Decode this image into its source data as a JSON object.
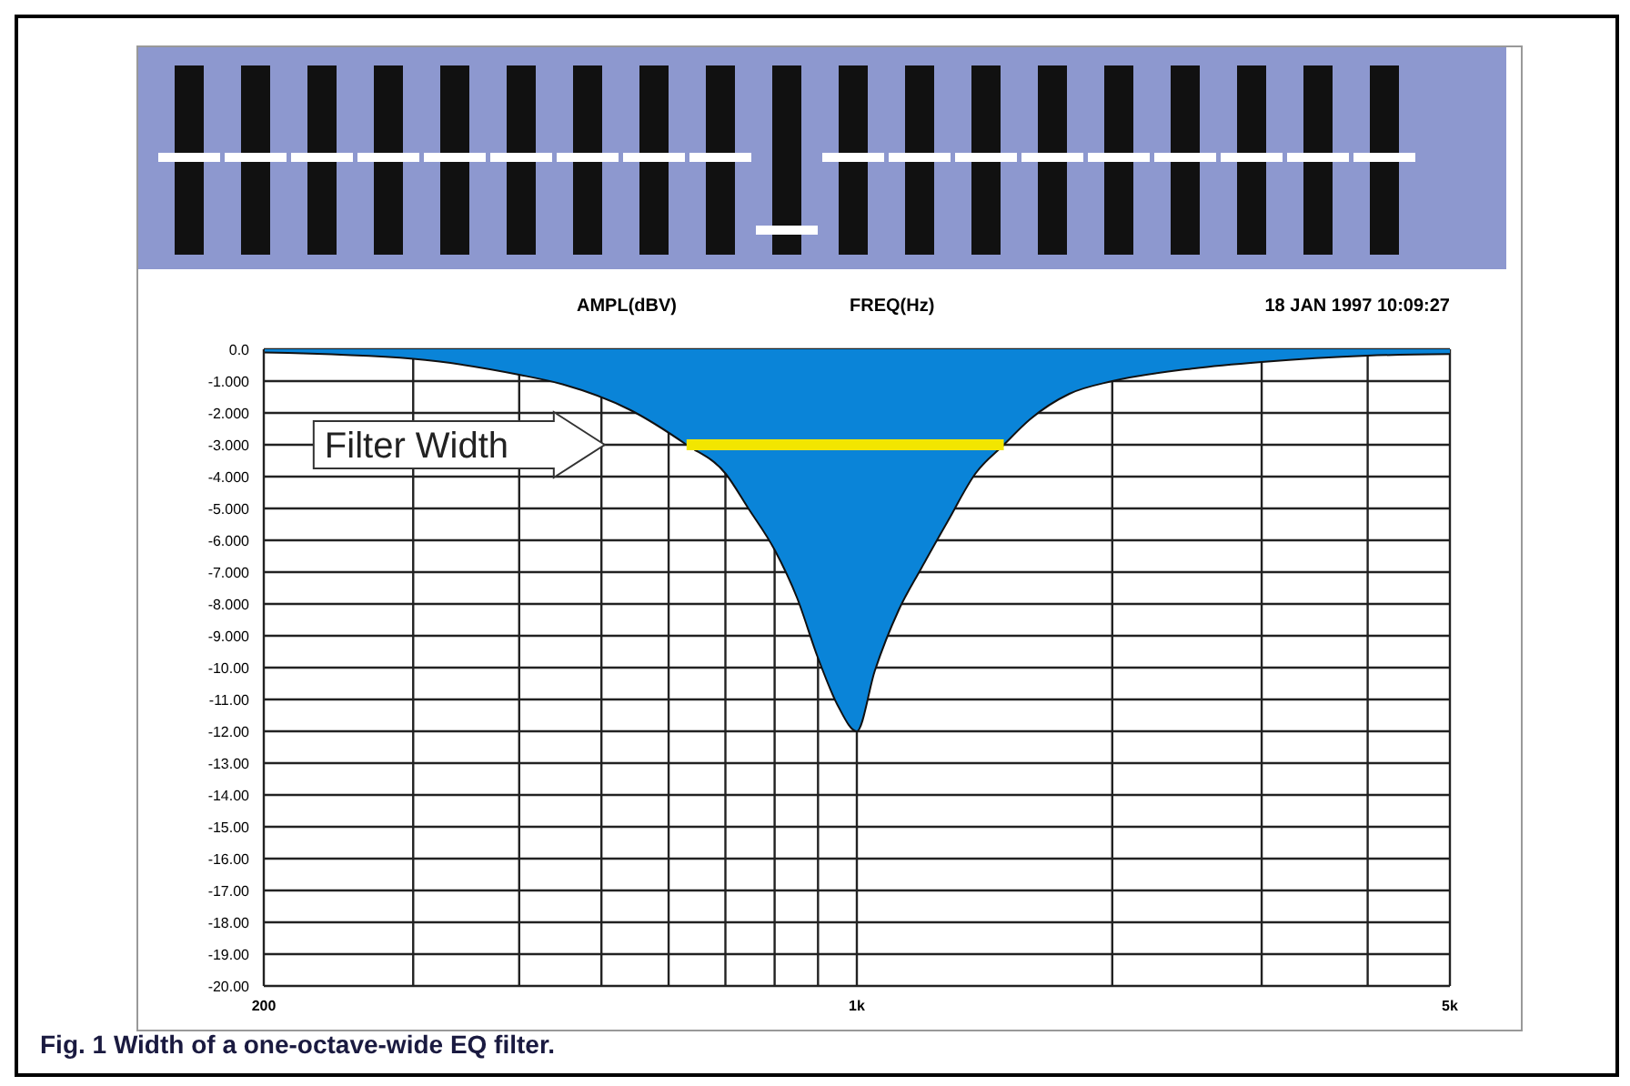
{
  "chart_data": {
    "type": "area",
    "title": "Fig. 1 Width of a one-octave-wide EQ filter.",
    "xlabel": "FREQ(Hz)",
    "ylabel": "AMPL(dBV)",
    "annotations": [
      "18 JAN 1997 10:09:27",
      "Filter Width"
    ],
    "log": "x",
    "grid": true,
    "marker": "none",
    "xlim": [
      200,
      5000
    ],
    "xticks": [
      {
        "value": 200,
        "label": "200"
      },
      {
        "value": 300,
        "label": null
      },
      {
        "value": 400,
        "label": null
      },
      {
        "value": 500,
        "label": null
      },
      {
        "value": 600,
        "label": null
      },
      {
        "value": 700,
        "label": null
      },
      {
        "value": 800,
        "label": null
      },
      {
        "value": 900,
        "label": null
      },
      {
        "value": 1000,
        "label": "1k"
      },
      {
        "value": 2000,
        "label": null
      },
      {
        "value": 3000,
        "label": null
      },
      {
        "value": 4000,
        "label": null
      },
      {
        "value": 5000,
        "label": "5k"
      }
    ],
    "ylim": [
      -20,
      0
    ],
    "yticks": [
      {
        "value": 0,
        "label": "0.0"
      },
      {
        "value": -1,
        "label": "-1.000"
      },
      {
        "value": -2,
        "label": "-2.000"
      },
      {
        "value": -3,
        "label": "-3.000"
      },
      {
        "value": -4,
        "label": "-4.000"
      },
      {
        "value": -5,
        "label": "-5.000"
      },
      {
        "value": -6,
        "label": "-6.000"
      },
      {
        "value": -7,
        "label": "-7.000"
      },
      {
        "value": -8,
        "label": "-8.000"
      },
      {
        "value": -9,
        "label": "-9.000"
      },
      {
        "value": -10,
        "label": "-10.00"
      },
      {
        "value": -11,
        "label": "-11.00"
      },
      {
        "value": -12,
        "label": "-12.00"
      },
      {
        "value": -13,
        "label": "-13.00"
      },
      {
        "value": -14,
        "label": "-14.00"
      },
      {
        "value": -15,
        "label": "-15.00"
      },
      {
        "value": -16,
        "label": "-16.00"
      },
      {
        "value": -17,
        "label": "-17.00"
      },
      {
        "value": -18,
        "label": "-18.00"
      },
      {
        "value": -19,
        "label": "-19.00"
      },
      {
        "value": -20,
        "label": "-20.00"
      }
    ],
    "series": [
      {
        "color": "#0a84d8",
        "x": [
          200,
          300,
          400,
          450,
          540,
          630,
          700,
          745,
          800,
          850,
          900,
          950,
          1000,
          1050,
          1120,
          1190,
          1280,
          1380,
          1490,
          1600,
          1780,
          2000,
          2500,
          3000,
          4000,
          5000
        ],
        "values": [
          -0.1,
          -0.3,
          -0.8,
          -1.1,
          -1.9,
          -3,
          -3.9,
          -5,
          -6.3,
          -7.8,
          -9.7,
          -11.2,
          -12,
          -10.1,
          -8.2,
          -6.9,
          -5.4,
          -3.9,
          -3,
          -2.2,
          -1.4,
          -1,
          -0.6,
          -0.4,
          -0.2,
          -0.15
        ]
      },
      {
        "type": "line",
        "color": "#f2e600",
        "x": [
          630,
          1490
        ],
        "values": [
          -3,
          -3
        ]
      }
    ]
  }
}
